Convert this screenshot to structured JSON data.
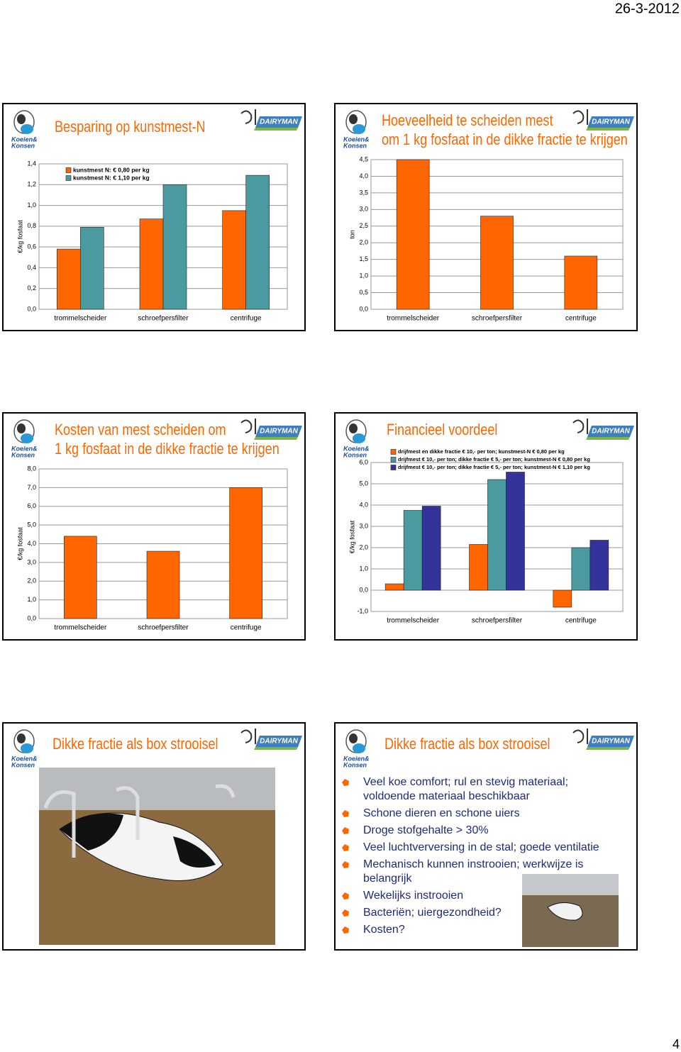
{
  "header": {
    "date": "26-3-2012"
  },
  "page_number": "4",
  "logo": {
    "left_top": "Koeien&",
    "left_bottom": "Konsen",
    "right": "DAIRYMAN"
  },
  "chart_data": [
    {
      "type": "bar",
      "title": [
        "Besparing op kunstmest-N"
      ],
      "y_label": "€/kg fosfaat",
      "categories": [
        "trommelscheider",
        "schroefpersfilter",
        "centrifuge"
      ],
      "series": [
        {
          "name": "kunstmest N: € 0,80 per kg",
          "color": "#FF6600",
          "values": [
            0.58,
            0.87,
            0.95
          ]
        },
        {
          "name": "kunstmest N: € 1,10 per kg",
          "color": "#4A9AA0",
          "values": [
            0.79,
            1.2,
            1.29
          ]
        }
      ],
      "ylim": [
        0,
        1.4
      ],
      "yticks": [
        {
          "value": 0,
          "label": "0,0"
        },
        {
          "value": 0.2,
          "label": "0,2"
        },
        {
          "value": 0.4,
          "label": "0,4"
        },
        {
          "value": 0.6,
          "label": "0,6"
        },
        {
          "value": 0.8,
          "label": "0,8"
        },
        {
          "value": 1,
          "label": "1,0"
        },
        {
          "value": 1.2,
          "label": "1,2"
        },
        {
          "value": 1.4,
          "label": "1,4"
        }
      ],
      "grid": true,
      "legend": "top-left"
    },
    {
      "type": "bar",
      "title": [
        "Hoeveelheid te scheiden mest",
        "om 1 kg fosfaat in de dikke fractie te krijgen"
      ],
      "y_label": "ton",
      "categories": [
        "trommelscheider",
        "schroefpersfilter",
        "centrifuge"
      ],
      "color": "#FF6600",
      "values": [
        4.5,
        2.8,
        1.6
      ],
      "ylim": [
        0,
        4.5
      ],
      "yticks": [
        {
          "value": 0,
          "label": "0,0"
        },
        {
          "value": 0.5,
          "label": "0,5"
        },
        {
          "value": 1,
          "label": "1,0"
        },
        {
          "value": 1.5,
          "label": "1,5"
        },
        {
          "value": 2,
          "label": "2,0"
        },
        {
          "value": 2.5,
          "label": "2,5"
        },
        {
          "value": 3,
          "label": "3,0"
        },
        {
          "value": 3.5,
          "label": "3,5"
        },
        {
          "value": 4,
          "label": "4,0"
        },
        {
          "value": 4.5,
          "label": "4,5"
        }
      ],
      "grid": true
    },
    {
      "type": "bar",
      "title": [
        "Kosten van mest scheiden om",
        "1 kg fosfaat in de dikke fractie te krijgen"
      ],
      "y_label": "€/kg fosfaat",
      "categories": [
        "trommelscheider",
        "schroefpersfilter",
        "centrifuge"
      ],
      "color": "#FF6600",
      "values": [
        4.4,
        3.6,
        7.0
      ],
      "ylim": [
        0,
        8
      ],
      "yticks": [
        {
          "value": 0,
          "label": "0,0"
        },
        {
          "value": 1,
          "label": "1,0"
        },
        {
          "value": 2,
          "label": "2,0"
        },
        {
          "value": 3,
          "label": "3,0"
        },
        {
          "value": 4,
          "label": "4,0"
        },
        {
          "value": 5,
          "label": "5,0"
        },
        {
          "value": 6,
          "label": "6,0"
        },
        {
          "value": 7,
          "label": "7,0"
        },
        {
          "value": 8,
          "label": "8,0"
        }
      ],
      "grid": true
    },
    {
      "type": "bar",
      "title": [
        "Financieel voordeel"
      ],
      "y_label": "€/kg fosfaat",
      "categories": [
        "trommelscheider",
        "schroefpersfilter",
        "centrifuge"
      ],
      "series": [
        {
          "name": "drijfmest en dikke fractie € 10,- per ton; kunstmest-N € 0,80 per kg",
          "color": "#FF6600",
          "values": [
            0.3,
            2.15,
            -0.8
          ]
        },
        {
          "name": "drijfmest € 10,- per ton; dikke fractie € 5,- per ton; kunstmest-N € 0,80 per kg",
          "color": "#4A9AA0",
          "values": [
            3.75,
            5.2,
            2.0
          ]
        },
        {
          "name": "drijfmest € 10,- per ton; dikke fractie € 5,- per ton; kunstmest-N € 1,10 per kg",
          "color": "#333399",
          "values": [
            3.95,
            5.55,
            2.35
          ]
        }
      ],
      "ylim": [
        -1,
        6
      ],
      "yticks": [
        {
          "value": -1,
          "label": "-1,0"
        },
        {
          "value": 0,
          "label": "0,0"
        },
        {
          "value": 1,
          "label": "1,0"
        },
        {
          "value": 2,
          "label": "2,0"
        },
        {
          "value": 3,
          "label": "3,0"
        },
        {
          "value": 4,
          "label": "4,0"
        },
        {
          "value": 5,
          "label": "5,0"
        },
        {
          "value": 6,
          "label": "6,0"
        }
      ],
      "grid": true,
      "legend": "top-left"
    }
  ],
  "slides": [
    {
      "title": "Dikke fractie als box strooisel"
    },
    {
      "title": "Dikke fractie als box strooisel",
      "bullets": [
        [
          "Veel koe comfort; rul en stevig materiaal;",
          "voldoende materiaal beschikbaar"
        ],
        [
          "Schone dieren en schone uiers"
        ],
        [
          "Droge stofgehalte > 30%"
        ],
        [
          "Veel luchtverversing in de stal; goede ventilatie"
        ],
        [
          "Mechanisch kunnen instrooien; werkwijze is",
          "belangrijk"
        ],
        [
          "Wekelijks instrooien"
        ],
        [
          "Bacteriën; uiergezondheid?"
        ],
        [
          "Kosten?"
        ]
      ]
    }
  ]
}
